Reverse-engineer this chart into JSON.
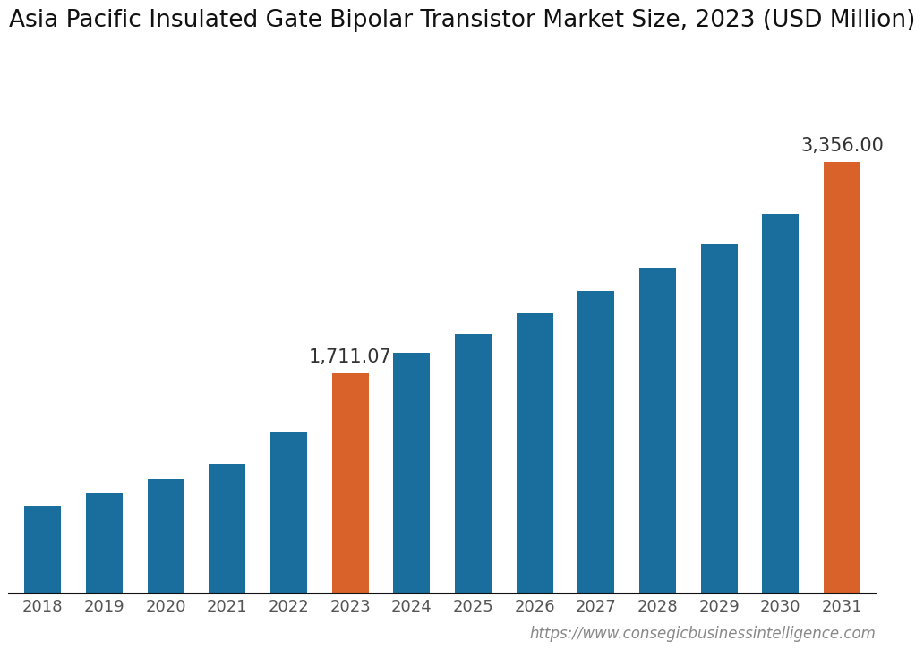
{
  "title": "Asia Pacific Insulated Gate Bipolar Transistor Market Size, 2023 (USD Million)",
  "categories": [
    "2018",
    "2019",
    "2020",
    "2021",
    "2022",
    "2023",
    "2024",
    "2025",
    "2026",
    "2027",
    "2028",
    "2029",
    "2030",
    "2031"
  ],
  "values": [
    680,
    780,
    890,
    1010,
    1250,
    1711.07,
    1870,
    2020,
    2180,
    2350,
    2530,
    2720,
    2950,
    3356.0
  ],
  "bar_colors": [
    "#1a6e9e",
    "#1a6e9e",
    "#1a6e9e",
    "#1a6e9e",
    "#1a6e9e",
    "#d9622b",
    "#1a6e9e",
    "#1a6e9e",
    "#1a6e9e",
    "#1a6e9e",
    "#1a6e9e",
    "#1a6e9e",
    "#1a6e9e",
    "#d9622b"
  ],
  "annotated_bars": [
    5,
    13
  ],
  "annotations": [
    "1,711.07",
    "3,356.00"
  ],
  "ylim": [
    0,
    4200
  ],
  "background_color": "#ffffff",
  "title_fontsize": 19,
  "tick_fontsize": 13,
  "annotation_fontsize": 15,
  "url_text": "https://www.consegicbusinessintelligence.com",
  "url_fontsize": 12
}
